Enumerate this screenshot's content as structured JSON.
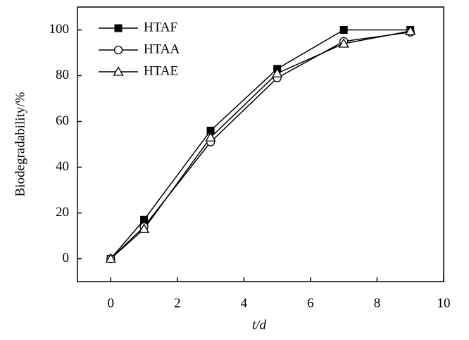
{
  "chart_data": {
    "type": "line",
    "x": [
      0,
      1,
      3,
      5,
      7,
      9
    ],
    "xlabel": "t/d",
    "ylabel": "Biodegradability/%",
    "xlim": [
      -1,
      10
    ],
    "xticks": [
      0,
      2,
      4,
      6,
      8,
      10
    ],
    "ylim": [
      -10,
      110
    ],
    "yticks": [
      0,
      20,
      40,
      60,
      80,
      100
    ],
    "legend": "upper-left",
    "series": [
      {
        "name": "HTAF",
        "color": "#000000",
        "marker": "square",
        "values": [
          0,
          17,
          56,
          83,
          100,
          100
        ]
      },
      {
        "name": "HTAA",
        "color": "#000000",
        "marker": "circle",
        "values": [
          0,
          14,
          51,
          79,
          95,
          99
        ]
      },
      {
        "name": "HTAE",
        "color": "#000000",
        "marker": "triangle",
        "values": [
          0,
          13,
          53,
          81,
          94,
          99.5
        ]
      }
    ]
  }
}
